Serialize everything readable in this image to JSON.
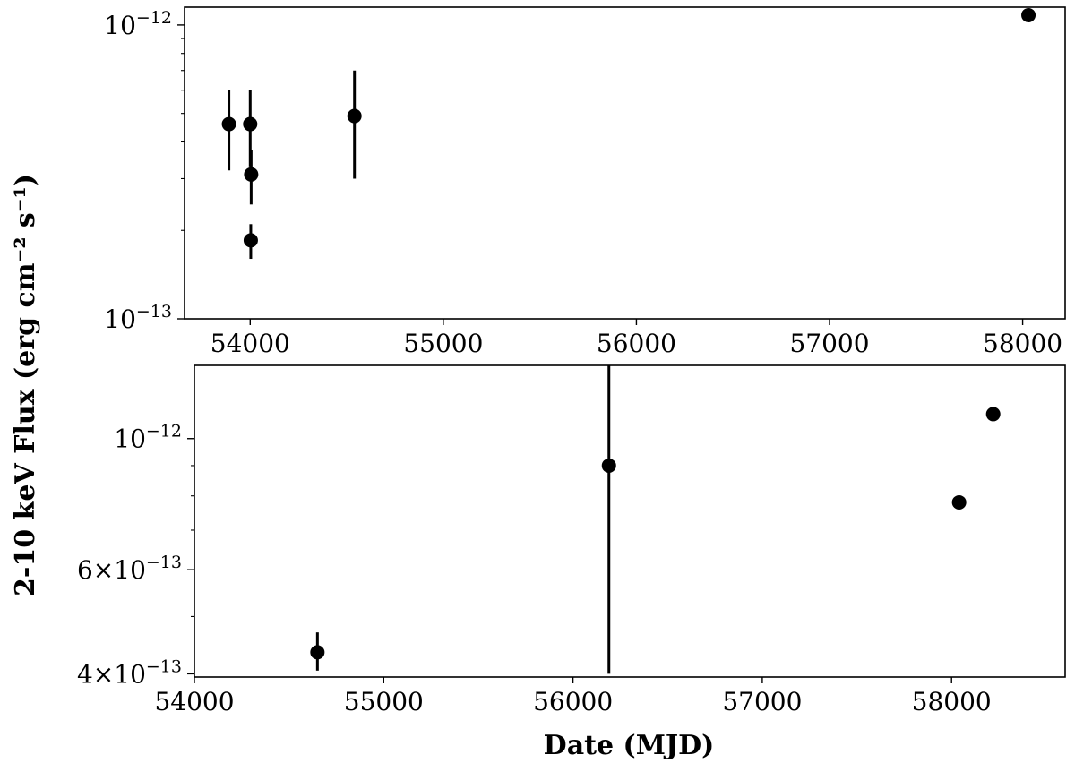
{
  "figure": {
    "ylabel": "2-10 keV Flux (erg cm⁻² s⁻¹)",
    "xlabel": "Date (MJD)"
  },
  "chart_data": [
    {
      "type": "scatter",
      "panel": "top",
      "yscale": "log",
      "xlim": [
        53660,
        58220
      ],
      "ylim": [
        1e-13,
        1.15e-12
      ],
      "xticks": [
        54000,
        55000,
        56000,
        57000,
        58000
      ],
      "xtick_labels": [
        "54000",
        "55000",
        "56000",
        "57000",
        "58000"
      ],
      "yticks_major": [
        {
          "value": 1e-13,
          "base": "10",
          "exp": "−13"
        },
        {
          "value": 1e-12,
          "base": "10",
          "exp": "−12"
        }
      ],
      "points": [
        {
          "x": 53890,
          "y": 4.6e-13,
          "y_low": 3.2e-13,
          "y_high": 6e-13
        },
        {
          "x": 54000,
          "y": 4.6e-13,
          "y_low": 3.3e-13,
          "y_high": 6e-13
        },
        {
          "x": 54005,
          "y": 3.1e-13,
          "y_low": 2.45e-13,
          "y_high": 3.75e-13
        },
        {
          "x": 54003,
          "y": 1.85e-13,
          "y_low": 1.6e-13,
          "y_high": 2.1e-13
        },
        {
          "x": 54540,
          "y": 4.9e-13,
          "y_low": 3e-13,
          "y_high": 7e-13
        },
        {
          "x": 58030,
          "y": 1.08e-12
        }
      ],
      "grid": false
    },
    {
      "type": "scatter",
      "panel": "bottom",
      "yscale": "log",
      "xlim": [
        54000,
        58600
      ],
      "ylim": [
        3.95e-13,
        1.33e-12
      ],
      "xticks": [
        54000,
        55000,
        56000,
        57000,
        58000
      ],
      "xtick_labels": [
        "54000",
        "55000",
        "56000",
        "57000",
        "58000"
      ],
      "yticks_major": [
        {
          "value": 4e-13,
          "base": "4×10",
          "exp": "−13"
        },
        {
          "value": 6e-13,
          "base": "6×10",
          "exp": "−13"
        },
        {
          "value": 1e-12,
          "base": "10",
          "exp": "−12"
        }
      ],
      "points": [
        {
          "x": 54650,
          "y": 4.35e-13,
          "y_low": 4.05e-13,
          "y_high": 4.7e-13
        },
        {
          "x": 56190,
          "y": 9e-13,
          "y_low": 4e-13,
          "y_high": 1.33e-12
        },
        {
          "x": 58040,
          "y": 7.8e-13
        },
        {
          "x": 58220,
          "y": 1.1e-12
        }
      ],
      "grid": false
    }
  ]
}
